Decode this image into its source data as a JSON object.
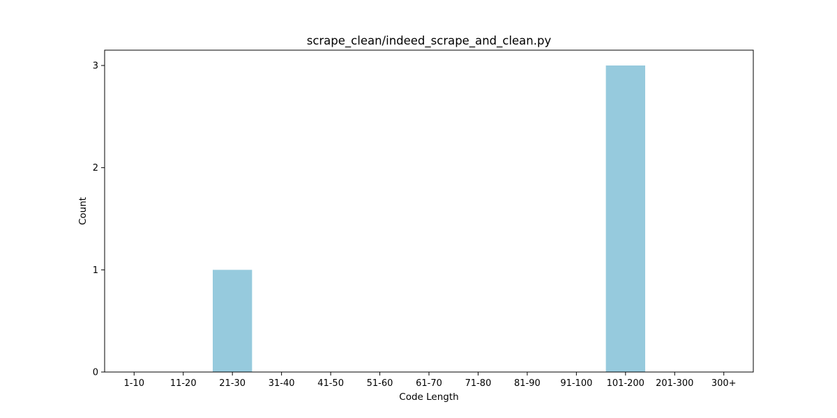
{
  "chart_data": {
    "type": "bar",
    "title": "scrape_clean/indeed_scrape_and_clean.py",
    "xlabel": "Code Length",
    "ylabel": "Count",
    "categories": [
      "1-10",
      "11-20",
      "21-30",
      "31-40",
      "41-50",
      "51-60",
      "61-70",
      "71-80",
      "81-90",
      "91-100",
      "101-200",
      "201-300",
      "300+"
    ],
    "values": [
      0,
      0,
      1,
      0,
      0,
      0,
      0,
      0,
      0,
      0,
      3,
      0,
      0
    ],
    "ylim": [
      0,
      3.15
    ],
    "yticks": [
      0,
      1,
      2,
      3
    ],
    "bar_color": "#96cadd",
    "grid": false,
    "legend": "none"
  }
}
